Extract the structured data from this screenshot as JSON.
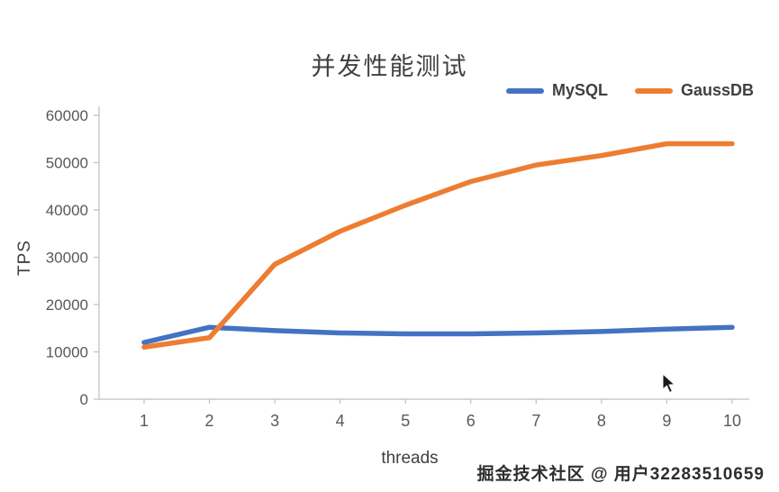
{
  "chart_data": {
    "type": "line",
    "title": "并发性能测试",
    "xlabel": "threads",
    "ylabel": "TPS",
    "x": [
      1,
      2,
      3,
      4,
      5,
      6,
      7,
      8,
      9,
      10
    ],
    "xtick_labels": [
      "1",
      "2",
      "3",
      "4",
      "5",
      "6",
      "7",
      "8",
      "9",
      "10"
    ],
    "yticks": [
      0,
      10000,
      20000,
      30000,
      40000,
      50000,
      60000
    ],
    "ylim": [
      0,
      60000
    ],
    "grid": false,
    "legend_position": "top-right",
    "series": [
      {
        "name": "MySQL",
        "color": "#4472C4",
        "values": [
          12000,
          15200,
          14500,
          14000,
          13800,
          13800,
          14000,
          14300,
          14800,
          15200
        ]
      },
      {
        "name": "GaussDB",
        "color": "#ED7D31",
        "values": [
          11000,
          13000,
          28500,
          35500,
          41000,
          46000,
          49500,
          51500,
          54000,
          54000
        ]
      }
    ]
  },
  "watermark": {
    "text": "掘金技术社区 @ 用户32283510659"
  }
}
